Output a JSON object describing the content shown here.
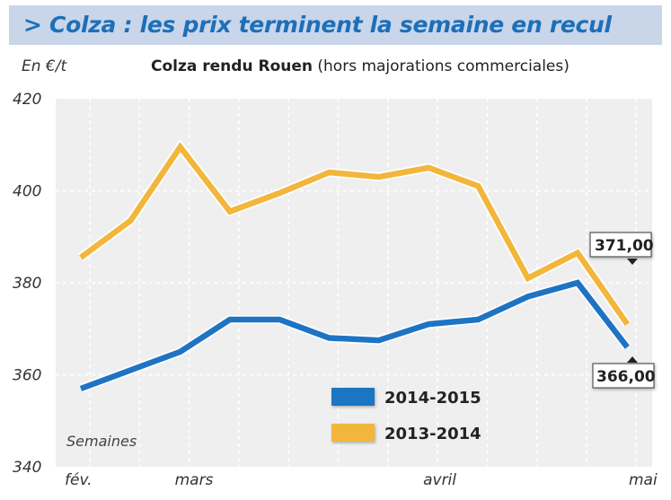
{
  "header": {
    "title": "> Colza : les prix terminent la semaine en recul"
  },
  "chart_data": {
    "type": "line",
    "title": "Colza rendu Rouen",
    "subtitle": "(hors majorations commerciales)",
    "ylabel": "En €/t",
    "xlabel": "Semaines",
    "ylim": [
      340,
      420
    ],
    "yticks": [
      340,
      360,
      380,
      400,
      420
    ],
    "x_labels": [
      {
        "label": "fév.",
        "index": 0
      },
      {
        "label": "mars",
        "index": 2
      },
      {
        "label": "avril",
        "index": 7
      },
      {
        "label": "mai",
        "index": 11
      }
    ],
    "series": [
      {
        "name": "2014-2015",
        "color": "#1e74c2",
        "values": [
          357,
          361,
          365,
          372,
          372,
          368,
          367.5,
          371,
          372,
          377,
          380,
          366
        ]
      },
      {
        "name": "2013-2014",
        "color": "#f2b63c",
        "values": [
          385.5,
          393.5,
          409.5,
          395.5,
          399.5,
          404,
          403,
          405,
          401,
          381,
          386.5,
          371
        ]
      }
    ],
    "annotations": [
      {
        "label": "371,00",
        "series": "2013-2014"
      },
      {
        "label": "366,00",
        "series": "2014-2015"
      }
    ],
    "grid": true,
    "legend_position": "bottom-center"
  }
}
